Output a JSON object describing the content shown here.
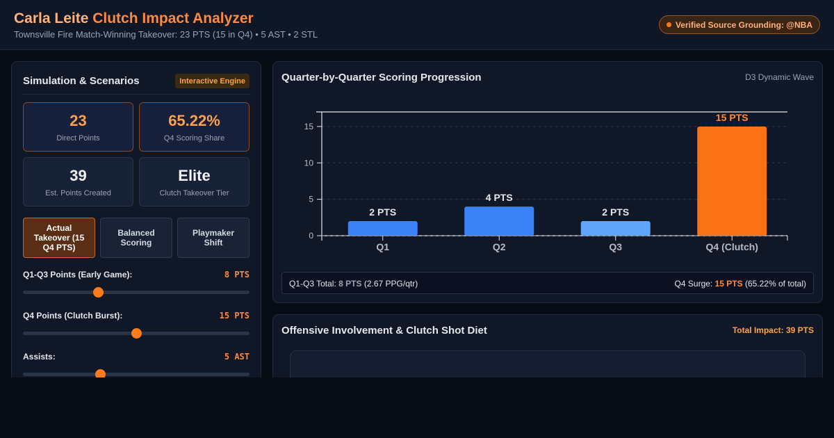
{
  "header": {
    "title_name": "Carla Leite",
    "title_rest": " Clutch Impact Analyzer",
    "subtitle": "Townsville Fire Match-Winning Takeover: 23 PTS (15 in Q4) • 5 AST • 2 STL",
    "badge": "Verified Source Grounding: @NBA"
  },
  "left": {
    "title": "Simulation & Scenarios",
    "tag": "Interactive Engine",
    "stats": [
      {
        "value": "23",
        "label": "Direct Points"
      },
      {
        "value": "65.22%",
        "label": "Q4 Scoring Share"
      },
      {
        "value": "39",
        "label": "Est. Points Created"
      },
      {
        "value": "Elite",
        "label": "Clutch Takeover Tier"
      }
    ],
    "scenarios": [
      {
        "label": "Actual Takeover (15 Q4 PTS)"
      },
      {
        "label": "Balanced Scoring"
      },
      {
        "label": "Playmaker Shift"
      }
    ],
    "sliders": [
      {
        "label": "Q1-Q3 Points (Early Game):",
        "value": "8 PTS",
        "level": 0.33
      },
      {
        "label": "Q4 Points (Clutch Burst):",
        "value": "15 PTS",
        "level": 0.5
      },
      {
        "label": "Assists:",
        "value": "5 AST",
        "level": 0.34
      }
    ]
  },
  "chart_panel": {
    "title": "Quarter-by-Quarter Scoring Progression",
    "tag": "D3 Dynamic Wave",
    "summary": {
      "left_prefix": "Q1-Q3 Total: ",
      "left_value": "8 PTS",
      "left_suffix": " (2.67 PPG/qtr)",
      "right_prefix": "Q4 Surge: ",
      "right_value": "15 PTS",
      "right_suffix": " (65.22% of total)"
    }
  },
  "chart_data": {
    "type": "bar",
    "categories": [
      "Q1",
      "Q2",
      "Q3",
      "Q4 (Clutch)"
    ],
    "values": [
      2,
      4,
      2,
      15
    ],
    "data_labels": [
      "2 PTS",
      "4 PTS",
      "2 PTS",
      "15 PTS"
    ],
    "yticks": [
      0,
      5,
      10,
      15
    ],
    "ylim": [
      0,
      17
    ],
    "grid": true,
    "colors": [
      "#3b82f6",
      "#3b82f6",
      "#60a5fa",
      "#f97316"
    ]
  },
  "offense_panel": {
    "title": "Offensive Involvement & Clutch Shot Diet",
    "total": "Total Impact: 39 PTS"
  }
}
